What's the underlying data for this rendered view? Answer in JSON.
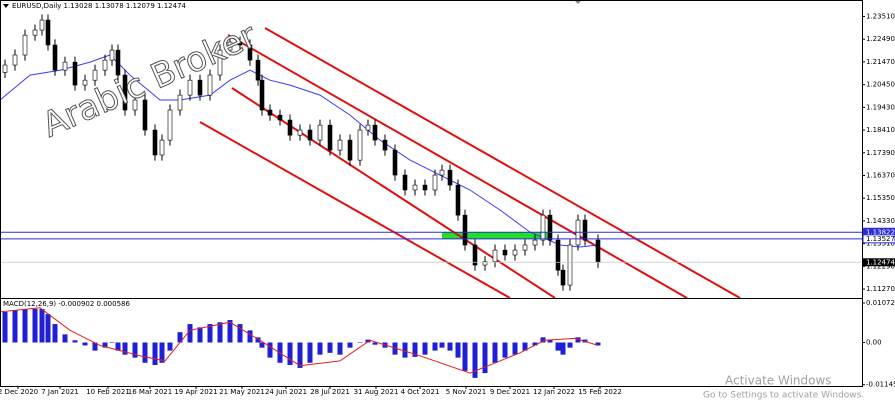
{
  "chart_data": [
    {
      "type": "candlestick",
      "title": "EURUSD,Daily 1.13028 1.13078 1.12079 1.12474",
      "watermark": "Arabic Broker",
      "bull_color": "#ffffff",
      "bear_color": "#000000",
      "x": [
        2.5,
        7.5,
        12.5,
        17.5,
        21,
        24,
        27.5,
        32.5,
        37.5,
        42.5,
        47.5,
        52.5,
        56,
        59,
        62.5,
        67.5,
        72.5,
        77.5,
        81,
        85,
        90,
        95,
        100,
        105,
        110,
        115,
        120,
        125,
        129,
        131,
        135,
        140,
        145,
        150,
        155,
        160,
        165,
        170,
        175,
        180,
        184,
        187.5,
        192.5,
        197.5,
        202.5,
        207.5,
        212.5,
        217.5,
        221,
        225,
        229,
        232.5,
        237.5,
        242.5,
        247.5,
        252.5,
        257.5,
        262.5,
        267.5,
        271.5,
        275,
        279,
        281.5,
        285,
        289,
        292.5,
        299
      ],
      "open": [
        1.21,
        1.2133,
        1.2178,
        1.2267,
        1.229,
        1.2335,
        1.2223,
        1.211,
        1.2146,
        1.2043,
        1.2065,
        1.211,
        1.2155,
        1.22,
        1.2088,
        1.1931,
        1.1976,
        1.1841,
        1.1729,
        1.1796,
        1.1931,
        1.1998,
        1.2065,
        1.1998,
        1.2088,
        1.22,
        1.2236,
        1.2223,
        1.2155,
        1.2065,
        1.1931,
        1.1908,
        1.1886,
        1.1818,
        1.1841,
        1.1796,
        1.1863,
        1.1751,
        1.1796,
        1.1706,
        1.1841,
        1.1863,
        1.1796,
        1.1751,
        1.1639,
        1.1572,
        1.1594,
        1.1572,
        1.1639,
        1.1661,
        1.1594,
        1.1459,
        1.1325,
        1.1235,
        1.125,
        1.1302,
        1.128,
        1.1302,
        1.1325,
        1.1347,
        1.1459,
        1.1347,
        1.1212,
        1.1145,
        1.1325,
        1.1437,
        1.1347
      ],
      "high": [
        1.2158,
        1.2203,
        1.2292,
        1.2315,
        1.236,
        1.236,
        1.2248,
        1.2171,
        1.2171,
        1.209,
        1.2135,
        1.218,
        1.2225,
        1.2225,
        1.2113,
        1.2001,
        1.2001,
        1.1866,
        1.1821,
        1.1956,
        1.2023,
        1.209,
        1.209,
        1.2113,
        1.2225,
        1.2261,
        1.2261,
        1.2248,
        1.218,
        1.209,
        1.1956,
        1.1933,
        1.1911,
        1.1866,
        1.1866,
        1.1888,
        1.1888,
        1.1821,
        1.1821,
        1.1866,
        1.1888,
        1.1888,
        1.1821,
        1.1776,
        1.1664,
        1.1619,
        1.1619,
        1.1664,
        1.1686,
        1.1686,
        1.1619,
        1.1484,
        1.135,
        1.1275,
        1.1327,
        1.1327,
        1.1327,
        1.135,
        1.1372,
        1.1484,
        1.1484,
        1.1372,
        1.1237,
        1.135,
        1.1462,
        1.1462,
        1.1372
      ],
      "low": [
        1.2075,
        1.2108,
        1.2153,
        1.2242,
        1.2265,
        1.2198,
        1.2085,
        1.2085,
        1.2018,
        1.2018,
        1.204,
        1.2085,
        1.213,
        1.2063,
        1.1906,
        1.1906,
        1.1816,
        1.1704,
        1.1704,
        1.1771,
        1.1906,
        1.1973,
        1.1973,
        1.1973,
        1.2063,
        1.2175,
        1.2198,
        1.213,
        1.204,
        1.1906,
        1.1883,
        1.1861,
        1.1793,
        1.1793,
        1.1771,
        1.1771,
        1.1726,
        1.1726,
        1.1681,
        1.1681,
        1.1816,
        1.1771,
        1.1726,
        1.1614,
        1.1547,
        1.1547,
        1.1547,
        1.1547,
        1.1614,
        1.1569,
        1.1434,
        1.13,
        1.121,
        1.121,
        1.1225,
        1.1255,
        1.1255,
        1.1277,
        1.13,
        1.1322,
        1.1322,
        1.1187,
        1.112,
        1.112,
        1.13,
        1.1322,
        1.1222
      ],
      "close": [
        1.2133,
        1.2178,
        1.2267,
        1.229,
        1.2335,
        1.2223,
        1.211,
        1.2146,
        1.2043,
        1.2065,
        1.211,
        1.2155,
        1.22,
        1.2088,
        1.1931,
        1.1976,
        1.1841,
        1.1729,
        1.1796,
        1.1931,
        1.1998,
        1.2065,
        1.1998,
        1.2088,
        1.22,
        1.2236,
        1.2223,
        1.2155,
        1.2065,
        1.1931,
        1.1908,
        1.1886,
        1.1818,
        1.1841,
        1.1796,
        1.1863,
        1.1751,
        1.1796,
        1.1706,
        1.1841,
        1.1863,
        1.1796,
        1.1751,
        1.1639,
        1.1572,
        1.1594,
        1.1572,
        1.1639,
        1.1661,
        1.1594,
        1.1459,
        1.1325,
        1.1235,
        1.125,
        1.1302,
        1.128,
        1.1302,
        1.1325,
        1.1347,
        1.1459,
        1.1347,
        1.1212,
        1.1145,
        1.1325,
        1.1437,
        1.1347,
        1.1247
      ],
      "ma": {
        "color": "#3b3bff",
        "x": [
          0,
          15,
          30,
          45,
          55,
          65,
          80,
          90,
          105,
          115,
          125,
          135,
          145,
          160,
          175,
          190,
          205,
          220,
          235,
          250,
          265,
          280,
          290,
          299
        ],
        "values": [
          1.1976,
          1.2088,
          1.211,
          1.2146,
          1.2178,
          1.2088,
          1.1976,
          1.1976,
          1.1998,
          1.2065,
          1.211,
          1.2065,
          1.2043,
          1.1998,
          1.1908,
          1.1796,
          1.1706,
          1.1639,
          1.1572,
          1.1482,
          1.1383,
          1.1325,
          1.1316,
          1.1325
        ]
      },
      "hlines": [
        1.13822,
        1.13527
      ],
      "hline_color": "#2b2bd9",
      "last_price": 1.12474,
      "xlim": [
        0,
        431
      ],
      "xticks": [
        {
          "value": 9,
          "label": "2 Dec 2020"
        },
        {
          "value": 30,
          "label": "7 Jan 2021"
        },
        {
          "value": 54,
          "label": "10 Feb 2021"
        },
        {
          "value": 75,
          "label": "16 Mar 2021"
        },
        {
          "value": 98,
          "label": "19 Apr 2021"
        },
        {
          "value": 121,
          "label": "21 May 2021"
        },
        {
          "value": 143,
          "label": "24 Jun 2021"
        },
        {
          "value": 165,
          "label": "28 Jul 2021"
        },
        {
          "value": 188,
          "label": "31 Aug 2021"
        },
        {
          "value": 210,
          "label": "4 Oct 2021"
        },
        {
          "value": 233,
          "label": "5 Nov 2021"
        },
        {
          "value": 255,
          "label": "9 Dec 2021"
        },
        {
          "value": 277,
          "label": "12 Jan 2022"
        },
        {
          "value": 300,
          "label": "15 Feb 2022"
        }
      ],
      "ylim": [
        1.1087,
        1.2425
      ],
      "yticks": [
        {
          "value": 1.2351,
          "label": "1.23510"
        },
        {
          "value": 1.2249,
          "label": "1.22490"
        },
        {
          "value": 1.2147,
          "label": "1.21470"
        },
        {
          "value": 1.2045,
          "label": "1.20450"
        },
        {
          "value": 1.1943,
          "label": "1.19430"
        },
        {
          "value": 1.1841,
          "label": "1.18410"
        },
        {
          "value": 1.1739,
          "label": "1.17390"
        },
        {
          "value": 1.1637,
          "label": "1.16370"
        },
        {
          "value": 1.1535,
          "label": "1.15350"
        },
        {
          "value": 1.1433,
          "label": "1.14330"
        },
        {
          "value": 1.1331,
          "label": "1.13310"
        },
        {
          "value": 1.1229,
          "label": "1.12290"
        },
        {
          "value": 1.1127,
          "label": "1.11270"
        }
      ]
    },
    {
      "type": "bar",
      "title": "MACD(12,26,9) -0.000902 0.000586",
      "color": "#1f1fd6",
      "x": [
        2.5,
        7.5,
        12.5,
        17.5,
        21,
        24,
        27.5,
        32.5,
        37.5,
        42.5,
        47.5,
        52.5,
        56,
        59,
        62.5,
        67.5,
        72.5,
        77.5,
        81,
        85,
        90,
        95,
        100,
        105,
        110,
        115,
        120,
        125,
        129,
        131,
        135,
        140,
        145,
        150,
        155,
        160,
        165,
        170,
        175,
        180,
        184,
        187.5,
        192.5,
        197.5,
        202.5,
        207.5,
        212.5,
        217.5,
        221,
        225,
        229,
        232.5,
        237.5,
        242.5,
        247.5,
        252.5,
        257.5,
        262.5,
        267.5,
        271.5,
        275,
        279,
        281.5,
        285,
        289,
        292.5,
        299
      ],
      "values": [
        0.0083,
        0.0088,
        0.0091,
        0.0091,
        0.0091,
        0.0077,
        0.005,
        0.0022,
        0.0006,
        -0.0008,
        -0.0022,
        -0.0014,
        0.0,
        -0.0022,
        -0.0033,
        -0.0041,
        -0.0055,
        -0.0061,
        -0.0055,
        -0.0022,
        0.0028,
        0.005,
        0.0041,
        0.005,
        0.0055,
        0.0061,
        0.005,
        0.0033,
        0.0014,
        -0.0014,
        -0.0041,
        -0.0055,
        -0.0061,
        -0.0069,
        -0.0055,
        -0.0033,
        -0.0028,
        -0.0033,
        -0.0014,
        0.0,
        0.0008,
        -0.0006,
        -0.0014,
        -0.0033,
        -0.0041,
        -0.0039,
        -0.0033,
        -0.0022,
        -0.0014,
        -0.0022,
        -0.0041,
        -0.0077,
        -0.0096,
        -0.0083,
        -0.0055,
        -0.0041,
        -0.0033,
        -0.0022,
        -0.0008,
        0.0014,
        0.0008,
        -0.0022,
        -0.0033,
        -0.0014,
        0.0014,
        0.0008,
        -0.0008
      ],
      "signal": {
        "color": "#e02020",
        "x": [
          0,
          20,
          35,
          50,
          70,
          82.5,
          95,
          115,
          130,
          150,
          170,
          185,
          210,
          235,
          260,
          272.5,
          287.5,
          299
        ],
        "values": [
          0.0083,
          0.0094,
          0.0033,
          -0.0008,
          -0.0036,
          -0.005,
          0.0033,
          0.0055,
          0.0006,
          -0.0063,
          -0.005,
          0.0006,
          -0.0036,
          -0.0083,
          -0.0028,
          0.0006,
          0.0011,
          -0.0008
        ]
      },
      "xlim": [
        0,
        431
      ],
      "ylim": [
        -0.0118,
        0.0118
      ],
      "yticks": [
        0.010722,
        {
          "value": 0,
          "label": "0.00"
        },
        -0.011459
      ]
    }
  ],
  "overlay": {
    "title": "Activate Windows",
    "subtitle": "Go to Settings to activate Windows."
  }
}
